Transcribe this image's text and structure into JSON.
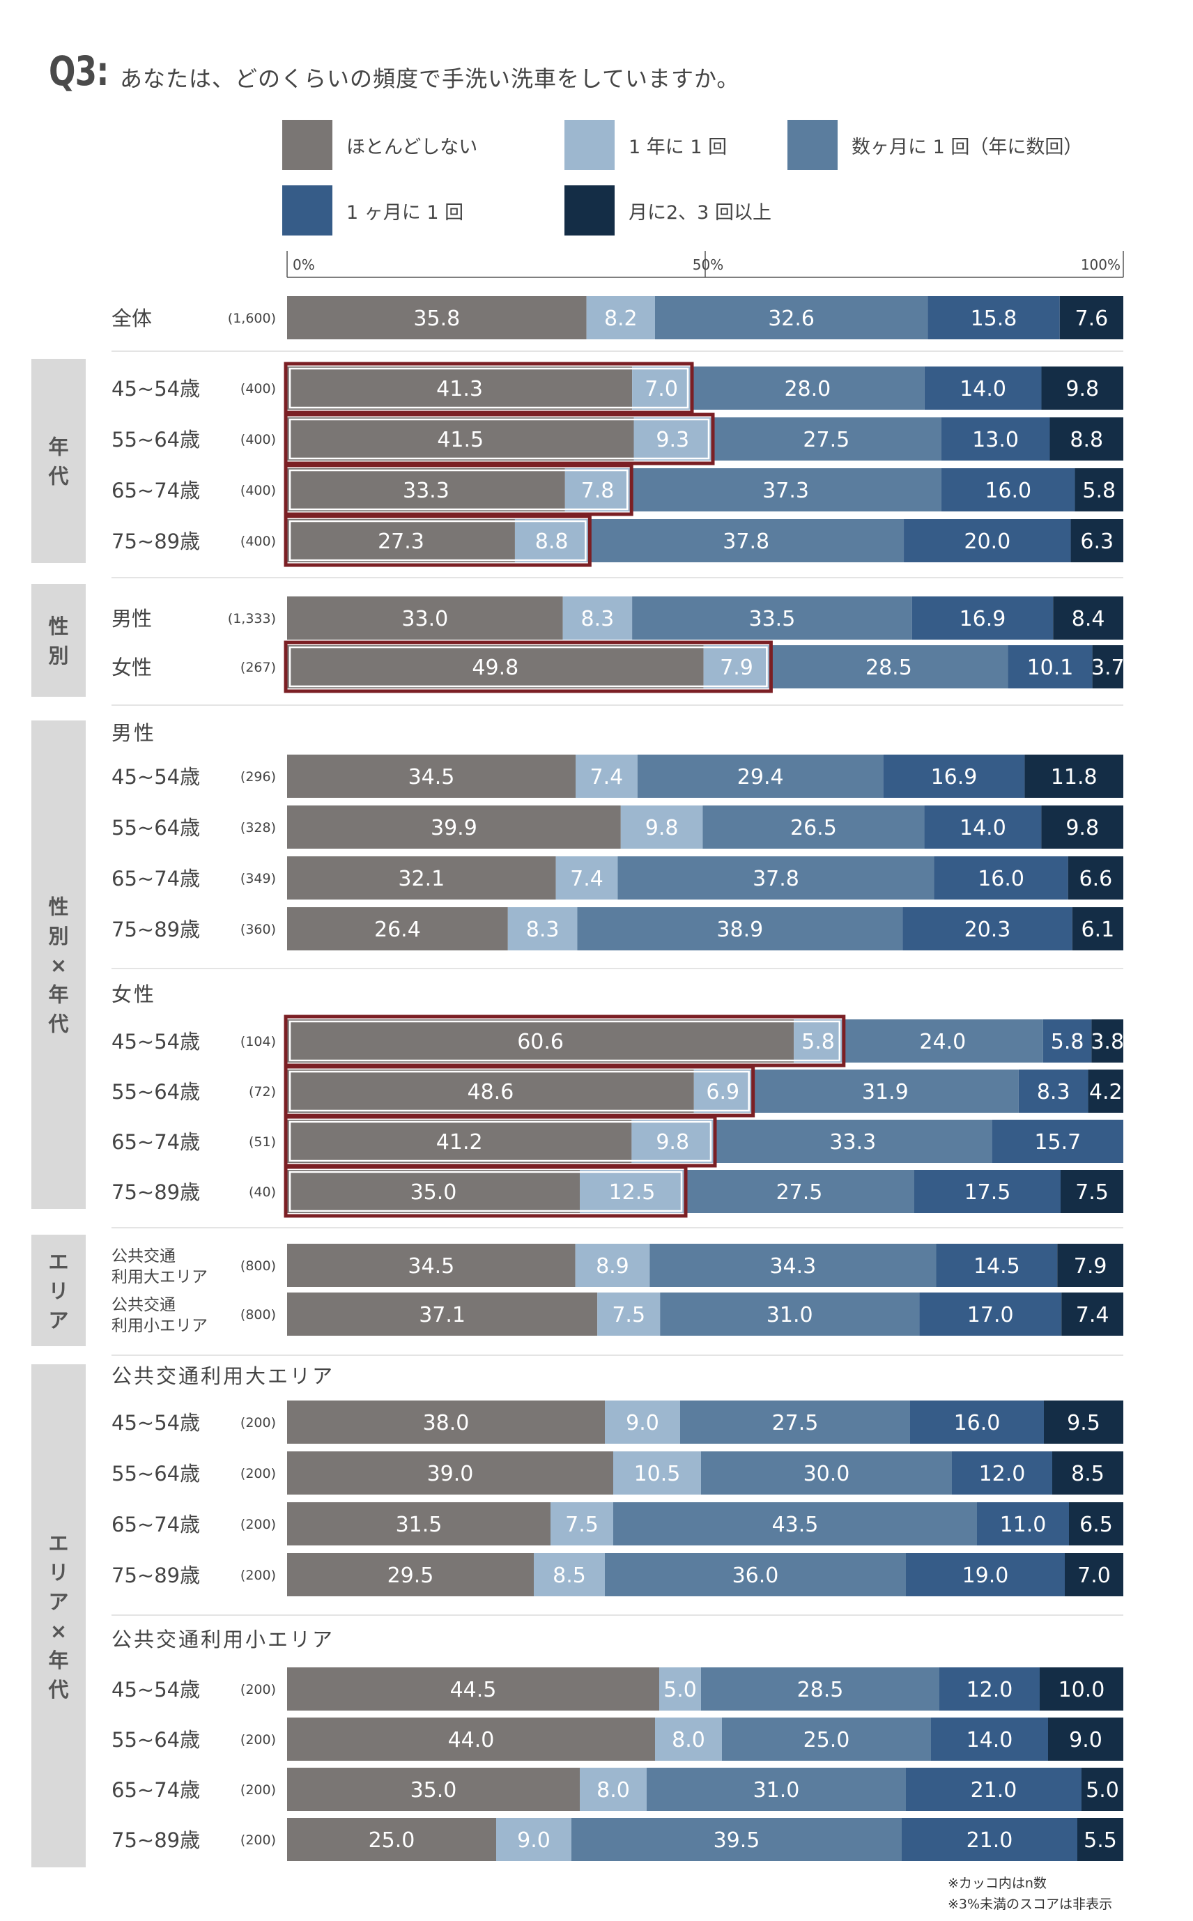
{
  "question": {
    "number": "Q3:",
    "text": "あなたは、どのくらいの頻度で手洗い洗車をしていますか。"
  },
  "colors": [
    "#7a7674",
    "#9db7cf",
    "#5b7d9e",
    "#365c88",
    "#142d46"
  ],
  "highlight_color": "#7b1f24",
  "notes": [
    "※カッコ内はn数",
    "※3%未満のスコアは非表示"
  ],
  "chart_data": {
    "type": "bar",
    "orientation": "horizontal",
    "stacked": true,
    "percent": true,
    "xlim": [
      0,
      100
    ],
    "ticks": [
      {
        "value": 0,
        "label": "0%"
      },
      {
        "value": 50,
        "label": "50%"
      },
      {
        "value": 100,
        "label": "100%"
      }
    ],
    "legend": [
      "ほとんどしない",
      "1 年に 1 回",
      "数ヶ月に 1 回（年に数回）",
      "1 ヶ月に 1 回",
      "月に2、3 回以上"
    ],
    "groups": [
      {
        "label": "",
        "rows": [
          {
            "label": "全体",
            "n": "(1,600)",
            "values": [
              35.8,
              8.2,
              32.6,
              15.8,
              7.6
            ],
            "hl": 0
          }
        ]
      },
      {
        "label": "年代",
        "rows": [
          {
            "label": "45~54歳",
            "n": "(400)",
            "values": [
              41.3,
              7.0,
              28.0,
              14.0,
              9.8
            ],
            "hl": 2
          },
          {
            "label": "55~64歳",
            "n": "(400)",
            "values": [
              41.5,
              9.3,
              27.5,
              13.0,
              8.8
            ],
            "hl": 2
          },
          {
            "label": "65~74歳",
            "n": "(400)",
            "values": [
              33.3,
              7.8,
              37.3,
              16.0,
              5.8
            ],
            "hl": 2
          },
          {
            "label": "75~89歳",
            "n": "(400)",
            "values": [
              27.3,
              8.8,
              37.8,
              20.0,
              6.3
            ],
            "hl": 2
          }
        ]
      },
      {
        "label": "性別",
        "rows": [
          {
            "label": "男性",
            "n": "(1,333)",
            "values": [
              33.0,
              8.3,
              33.5,
              16.9,
              8.4
            ],
            "hl": 0
          },
          {
            "label": "女性",
            "n": "(267)",
            "values": [
              49.8,
              7.9,
              28.5,
              10.1,
              3.7
            ],
            "hl": 2
          }
        ]
      },
      {
        "label": "性別×年代",
        "subgroups": [
          {
            "title": "男性",
            "rows": [
              {
                "label": "45~54歳",
                "n": "(296)",
                "values": [
                  34.5,
                  7.4,
                  29.4,
                  16.9,
                  11.8
                ],
                "hl": 0
              },
              {
                "label": "55~64歳",
                "n": "(328)",
                "values": [
                  39.9,
                  9.8,
                  26.5,
                  14.0,
                  9.8
                ],
                "hl": 0
              },
              {
                "label": "65~74歳",
                "n": "(349)",
                "values": [
                  32.1,
                  7.4,
                  37.8,
                  16.0,
                  6.6
                ],
                "hl": 0
              },
              {
                "label": "75~89歳",
                "n": "(360)",
                "values": [
                  26.4,
                  8.3,
                  38.9,
                  20.3,
                  6.1
                ],
                "hl": 0
              }
            ]
          },
          {
            "title": "女性",
            "rows": [
              {
                "label": "45~54歳",
                "n": "(104)",
                "values": [
                  60.6,
                  5.8,
                  24.0,
                  5.8,
                  3.8
                ],
                "hl": 2
              },
              {
                "label": "55~64歳",
                "n": "(72)",
                "values": [
                  48.6,
                  6.9,
                  31.9,
                  8.3,
                  4.2
                ],
                "hl": 2
              },
              {
                "label": "65~74歳",
                "n": "(51)",
                "values": [
                  41.2,
                  9.8,
                  33.3,
                  15.7,
                  0
                ],
                "hl": 2
              },
              {
                "label": "75~89歳",
                "n": "(40)",
                "values": [
                  35.0,
                  12.5,
                  27.5,
                  17.5,
                  7.5
                ],
                "hl": 2
              }
            ]
          }
        ]
      },
      {
        "label": "エリア",
        "rows": [
          {
            "label": [
              "公共交通",
              "利用大エリア"
            ],
            "n": "(800)",
            "values": [
              34.5,
              8.9,
              34.3,
              14.5,
              7.9
            ],
            "hl": 0
          },
          {
            "label": [
              "公共交通",
              "利用小エリア"
            ],
            "n": "(800)",
            "values": [
              37.1,
              7.5,
              31.0,
              17.0,
              7.4
            ],
            "hl": 0
          }
        ]
      },
      {
        "label": "エリア×年代",
        "subgroups": [
          {
            "title": "公共交通利用大エリア",
            "rows": [
              {
                "label": "45~54歳",
                "n": "(200)",
                "values": [
                  38.0,
                  9.0,
                  27.5,
                  16.0,
                  9.5
                ],
                "hl": 0
              },
              {
                "label": "55~64歳",
                "n": "(200)",
                "values": [
                  39.0,
                  10.5,
                  30.0,
                  12.0,
                  8.5
                ],
                "hl": 0
              },
              {
                "label": "65~74歳",
                "n": "(200)",
                "values": [
                  31.5,
                  7.5,
                  43.5,
                  11.0,
                  6.5
                ],
                "hl": 0
              },
              {
                "label": "75~89歳",
                "n": "(200)",
                "values": [
                  29.5,
                  8.5,
                  36.0,
                  19.0,
                  7.0
                ],
                "hl": 0
              }
            ]
          },
          {
            "title": "公共交通利用小エリア",
            "rows": [
              {
                "label": "45~54歳",
                "n": "(200)",
                "values": [
                  44.5,
                  5.0,
                  28.5,
                  12.0,
                  10.0
                ],
                "hl": 0
              },
              {
                "label": "55~64歳",
                "n": "(200)",
                "values": [
                  44.0,
                  8.0,
                  25.0,
                  14.0,
                  9.0
                ],
                "hl": 0
              },
              {
                "label": "65~74歳",
                "n": "(200)",
                "values": [
                  35.0,
                  8.0,
                  31.0,
                  21.0,
                  5.0
                ],
                "hl": 0
              },
              {
                "label": "75~89歳",
                "n": "(200)",
                "values": [
                  25.0,
                  9.0,
                  39.5,
                  21.0,
                  5.5
                ],
                "hl": 0
              }
            ]
          }
        ]
      }
    ]
  }
}
